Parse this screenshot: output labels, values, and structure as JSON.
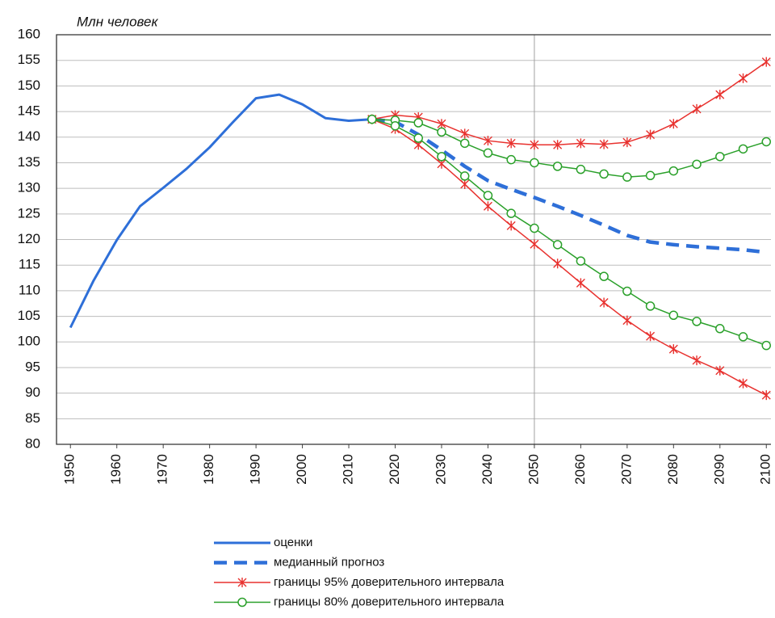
{
  "chart_data": {
    "type": "line",
    "title": "Млн  человек",
    "xlim": [
      1947,
      2101
    ],
    "ylim": [
      80,
      160
    ],
    "xticks": [
      1950,
      1960,
      1970,
      1980,
      1990,
      2000,
      2010,
      2020,
      2030,
      2040,
      2050,
      2060,
      2070,
      2080,
      2090,
      2100
    ],
    "yticks": [
      80,
      85,
      90,
      95,
      100,
      105,
      110,
      115,
      120,
      125,
      130,
      135,
      140,
      145,
      150,
      155,
      160
    ],
    "grid": true,
    "vline_x": 2050,
    "series": [
      {
        "name": "оценки",
        "color": "#2e6fd8",
        "style": "solid",
        "x": [
          1950,
          1955,
          1960,
          1965,
          1970,
          1975,
          1980,
          1985,
          1990,
          1995,
          2000,
          2005,
          2010,
          2015
        ],
        "values": [
          102.8,
          112,
          119.9,
          126.5,
          130.1,
          133.8,
          138.0,
          142.9,
          147.6,
          148.3,
          146.4,
          143.7,
          143.2,
          143.5
        ]
      },
      {
        "name": "медианный прогноз",
        "color": "#2e6fd8",
        "style": "dashed",
        "x": [
          2015,
          2020,
          2025,
          2030,
          2035,
          2040,
          2045,
          2050,
          2055,
          2060,
          2065,
          2070,
          2075,
          2080,
          2085,
          2090,
          2095,
          2100
        ],
        "values": [
          143.5,
          143.0,
          140.5,
          137.5,
          134.3,
          131.5,
          129.8,
          128.2,
          126.5,
          124.7,
          122.8,
          120.8,
          119.5,
          119.0,
          118.6,
          118.3,
          118.0,
          117.5
        ]
      },
      {
        "name": "границы  95% доверительного интервала",
        "color": "#e8312e",
        "style": "star",
        "x": [
          2015,
          2020,
          2025,
          2030,
          2035,
          2040,
          2045,
          2050,
          2055,
          2060,
          2065,
          2070,
          2075,
          2080,
          2085,
          2090,
          2095,
          2100
        ],
        "values": [
          143.5,
          144.3,
          143.9,
          142.6,
          140.7,
          139.3,
          138.8,
          138.5,
          138.5,
          138.8,
          138.6,
          139.0,
          140.5,
          142.6,
          145.5,
          148.3,
          151.5,
          154.7
        ],
        "lower": [
          143.5,
          141.6,
          138.5,
          134.8,
          130.8,
          126.5,
          122.7,
          119.1,
          115.3,
          111.5,
          107.7,
          104.2,
          101.1,
          98.6,
          96.4,
          94.4,
          91.9,
          89.6
        ]
      },
      {
        "name": "границы  80% доверительного интервала",
        "color": "#2aa02a",
        "style": "circle",
        "x": [
          2015,
          2020,
          2025,
          2030,
          2035,
          2040,
          2045,
          2050,
          2055,
          2060,
          2065,
          2070,
          2075,
          2080,
          2085,
          2090,
          2095,
          2100
        ],
        "values": [
          143.5,
          143.3,
          142.8,
          141.0,
          138.8,
          136.9,
          135.6,
          135.0,
          134.3,
          133.7,
          132.8,
          132.2,
          132.5,
          133.4,
          134.7,
          136.2,
          137.7,
          139.1
        ],
        "lower": [
          143.5,
          142.2,
          139.8,
          136.2,
          132.4,
          128.6,
          125.1,
          122.2,
          119.0,
          115.8,
          112.8,
          109.9,
          107.0,
          105.2,
          104.0,
          102.6,
          101.0,
          99.3
        ]
      }
    ]
  }
}
